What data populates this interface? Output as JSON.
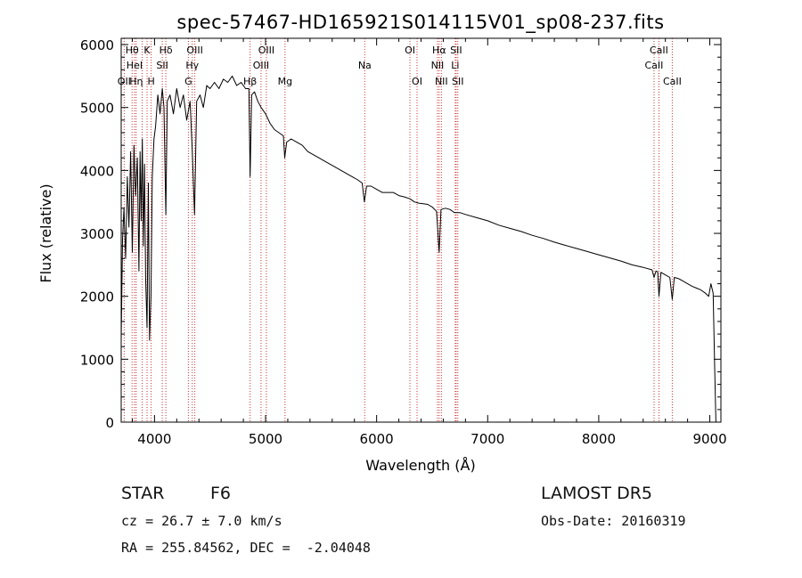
{
  "chart_data": {
    "type": "line",
    "title": "spec-57467-HD165921S014115V01_sp08-237.fits",
    "xlabel": "Wavelength (Å)",
    "ylabel": "Flux (relative)",
    "xlim": [
      3700,
      9100
    ],
    "ylim": [
      0,
      6100
    ],
    "x_ticks": [
      4000,
      5000,
      6000,
      7000,
      8000,
      9000
    ],
    "y_ticks": [
      0,
      1000,
      2000,
      3000,
      4000,
      5000,
      6000
    ],
    "grid": false,
    "series": [
      {
        "color": "#000000",
        "x": [
          3700,
          3712,
          3725,
          3740,
          3755,
          3770,
          3785,
          3800,
          3815,
          3830,
          3845,
          3860,
          3870,
          3880,
          3890,
          3900,
          3910,
          3920,
          3933,
          3945,
          3955,
          3968,
          3980,
          3995,
          4010,
          4030,
          4050,
          4070,
          4085,
          4102,
          4115,
          4140,
          4170,
          4200,
          4230,
          4260,
          4290,
          4320,
          4340,
          4360,
          4380,
          4410,
          4440,
          4470,
          4500,
          4540,
          4580,
          4620,
          4660,
          4700,
          4740,
          4780,
          4820,
          4850,
          4861,
          4875,
          4900,
          4930,
          4960,
          5000,
          5040,
          5080,
          5120,
          5160,
          5172,
          5190,
          5230,
          5280,
          5330,
          5380,
          5430,
          5480,
          5530,
          5580,
          5630,
          5680,
          5730,
          5780,
          5830,
          5870,
          5890,
          5910,
          5950,
          6000,
          6050,
          6100,
          6150,
          6200,
          6250,
          6300,
          6340,
          6380,
          6420,
          6460,
          6500,
          6540,
          6563,
          6580,
          6620,
          6660,
          6700,
          6750,
          6800,
          6900,
          7000,
          7100,
          7200,
          7300,
          7400,
          7500,
          7600,
          7700,
          7800,
          7900,
          8000,
          8100,
          8200,
          8300,
          8400,
          8480,
          8498,
          8515,
          8530,
          8542,
          8560,
          8600,
          8640,
          8662,
          8680,
          8720,
          8760,
          8800,
          8840,
          8880,
          8920,
          8960,
          8990,
          9010,
          9030,
          9045,
          9055
        ],
        "y": [
          1300,
          2900,
          3400,
          2600,
          3900,
          3100,
          4300,
          2700,
          4400,
          3600,
          4200,
          2400,
          4300,
          3200,
          4500,
          2800,
          4100,
          2300,
          1500,
          3800,
          1300,
          2000,
          3900,
          4500,
          4700,
          5200,
          4900,
          5300,
          5000,
          3300,
          5100,
          5200,
          4900,
          5300,
          5000,
          5200,
          4800,
          5100,
          4300,
          3300,
          5100,
          5200,
          5000,
          5350,
          5300,
          5400,
          5300,
          5450,
          5400,
          5500,
          5350,
          5400,
          5300,
          5300,
          3900,
          5200,
          5250,
          5100,
          5000,
          4900,
          4750,
          4650,
          4600,
          4550,
          4200,
          4450,
          4500,
          4450,
          4400,
          4300,
          4250,
          4200,
          4150,
          4100,
          4050,
          4000,
          3950,
          3900,
          3850,
          3800,
          3500,
          3750,
          3750,
          3700,
          3650,
          3650,
          3650,
          3600,
          3580,
          3550,
          3500,
          3480,
          3470,
          3460,
          3420,
          3350,
          2700,
          3380,
          3400,
          3380,
          3330,
          3330,
          3300,
          3250,
          3200,
          3130,
          3080,
          3030,
          2970,
          2920,
          2860,
          2810,
          2760,
          2710,
          2660,
          2610,
          2560,
          2500,
          2460,
          2420,
          2300,
          2400,
          2390,
          2000,
          2380,
          2340,
          2300,
          1950,
          2300,
          2280,
          2240,
          2200,
          2160,
          2130,
          2100,
          2050,
          2000,
          2200,
          2050,
          800,
          0
        ]
      }
    ],
    "lines": [
      {
        "w": 3727,
        "label": "OII",
        "row": 2
      },
      {
        "w": 3798,
        "label": "Hθ",
        "row": 0
      },
      {
        "w": 3820,
        "label": "HeI",
        "row": 1
      },
      {
        "w": 3835,
        "label": "Hη",
        "row": 2
      },
      {
        "w": 3889,
        "label": "",
        "row": 0
      },
      {
        "w": 3933,
        "label": "K",
        "row": 0
      },
      {
        "w": 3970,
        "label": "H",
        "row": 2
      },
      {
        "w": 4070,
        "label": "SII",
        "row": 1
      },
      {
        "w": 4102,
        "label": "Hδ",
        "row": 0
      },
      {
        "w": 4305,
        "label": "G",
        "row": 2
      },
      {
        "w": 4340,
        "label": "Hγ",
        "row": 1
      },
      {
        "w": 4363,
        "label": "OIII",
        "row": 0
      },
      {
        "w": 4861,
        "label": "Hβ",
        "row": 2
      },
      {
        "w": 4959,
        "label": "OIII",
        "row": 1
      },
      {
        "w": 5007,
        "label": "OIII",
        "row": 0
      },
      {
        "w": 5175,
        "label": "Mg",
        "row": 2
      },
      {
        "w": 5893,
        "label": "Na",
        "row": 1
      },
      {
        "w": 6300,
        "label": "OI",
        "row": 0
      },
      {
        "w": 6364,
        "label": "OI",
        "row": 2
      },
      {
        "w": 6548,
        "label": "NII",
        "row": 1
      },
      {
        "w": 6563,
        "label": "Hα",
        "row": 0
      },
      {
        "w": 6583,
        "label": "NII",
        "row": 2
      },
      {
        "w": 6708,
        "label": "Li",
        "row": 1
      },
      {
        "w": 6716,
        "label": "SII",
        "row": 0
      },
      {
        "w": 6731,
        "label": "SII",
        "row": 2
      },
      {
        "w": 8498,
        "label": "CaII",
        "row": 1
      },
      {
        "w": 8542,
        "label": "CaII",
        "row": 0
      },
      {
        "w": 8662,
        "label": "CaII",
        "row": 2
      }
    ],
    "line_color": "#cc3333"
  },
  "info": {
    "object_type": "STAR",
    "subclass": "F6",
    "survey": "LAMOST DR5",
    "cz": "cz = 26.7 ± 7.0 km/s",
    "obs_date": "Obs-Date: 20160319",
    "coords": "RA = 255.84562, DEC =  -2.04048"
  }
}
